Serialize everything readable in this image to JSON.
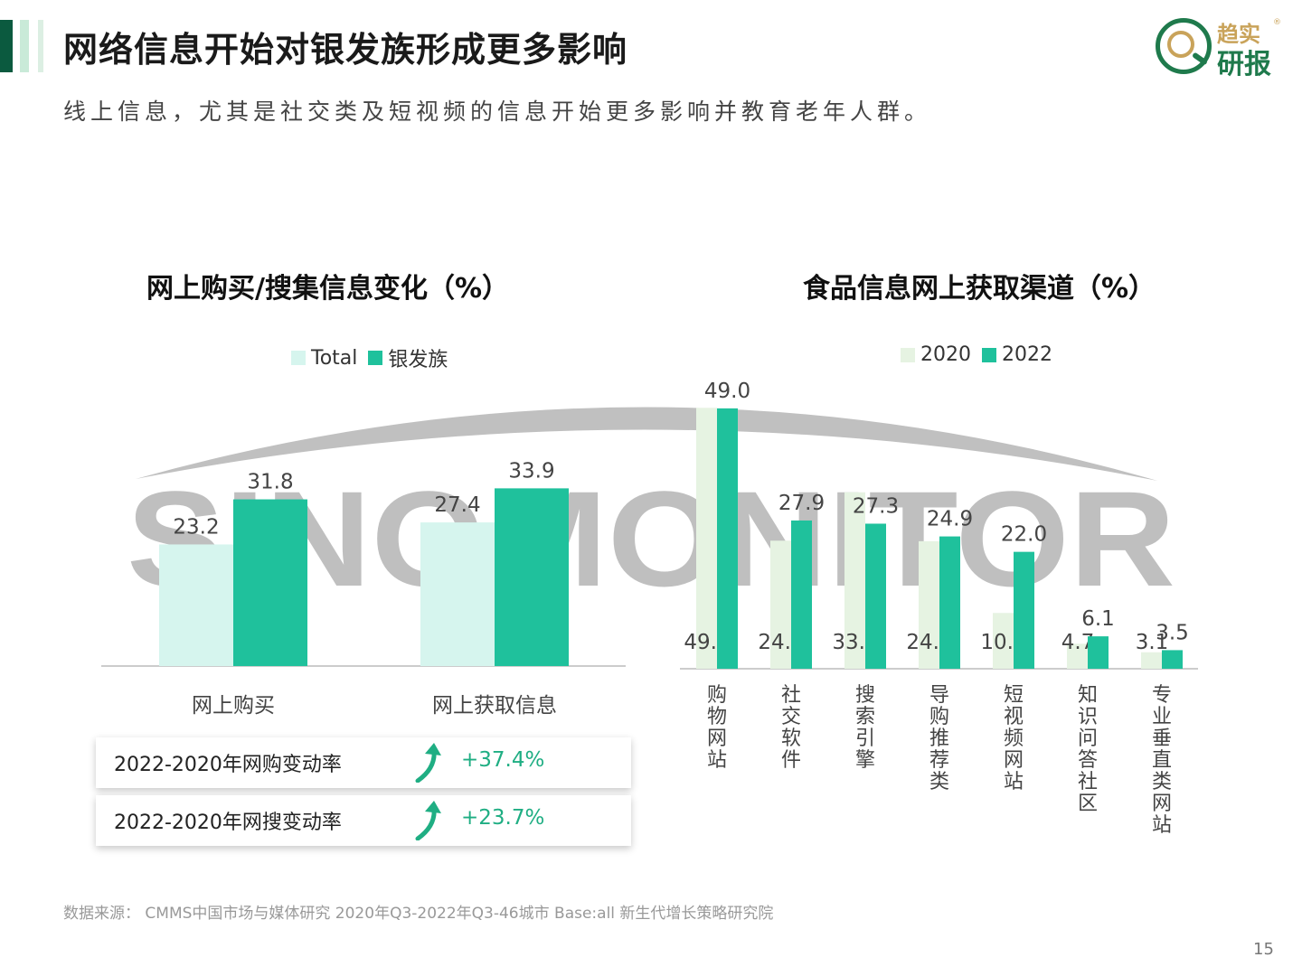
{
  "header": {
    "title": "网络信息开始对银发族形成更多影响",
    "subtitle": "线上信息，尤其是社交类及短视频的信息开始更多影响并教育老年人群。"
  },
  "logo": {
    "top": "趋实",
    "bottom": "研报",
    "reg": "®"
  },
  "watermark_text": "SINOMONITOR",
  "colors": {
    "light": "#d6f5ee",
    "dark": "#1fc19c",
    "light2020": "#e6f3e2",
    "accent": "#1fae83"
  },
  "chart_data": [
    {
      "type": "bar",
      "title": "网上购买/搜集信息变化（%）",
      "categories": [
        "网上购买",
        "网上获取信息"
      ],
      "series": [
        {
          "name": "Total",
          "values": [
            23.2,
            27.4
          ]
        },
        {
          "name": "银发族",
          "values": [
            31.8,
            33.9
          ]
        }
      ],
      "ylim": [
        0,
        50
      ]
    },
    {
      "type": "bar",
      "title": "食品信息网上获取渠道（%）",
      "categories": [
        "购物网站",
        "社交软件",
        "搜索引擎",
        "导购推荐类",
        "短视频网站",
        "知识问答社区",
        "专业垂直类网站"
      ],
      "series": [
        {
          "name": "2020",
          "values": [
            49.1,
            24.1,
            33.2,
            24.0,
            10.5,
            4.7,
            3.1
          ]
        },
        {
          "name": "2022",
          "values": [
            49.0,
            27.9,
            27.3,
            24.9,
            22.0,
            6.1,
            3.5
          ]
        }
      ],
      "ylim": [
        0,
        50
      ]
    }
  ],
  "cards": [
    {
      "label": "2022-2020年网购变动率",
      "value": "+37.4%"
    },
    {
      "label": "2022-2020年网搜变动率",
      "value": "+23.7%"
    }
  ],
  "footer": {
    "source": "数据来源： CMMS中国市场与媒体研究 2020年Q3-2022年Q3-46城市 Base:all   新生代增长策略研究院",
    "page": "15"
  }
}
